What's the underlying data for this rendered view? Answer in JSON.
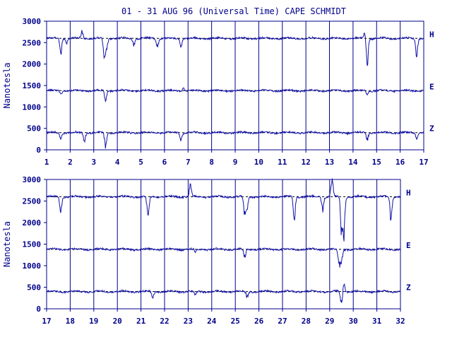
{
  "title": "01 - 31 AUG 96 (Universal Time) CAPE SCHMIDT",
  "colors": {
    "axis": "#00008b",
    "trace": "#1010a8",
    "baseline": "#000000",
    "background": "#ffffff"
  },
  "chart_data": [
    {
      "type": "line",
      "title": "01 - 31 AUG 96 (Universal Time) CAPE SCHMIDT",
      "xlabel": "",
      "ylabel": "Nanotesla",
      "xlim": [
        1,
        17
      ],
      "ylim": [
        0,
        3000
      ],
      "x_ticks": [
        "1",
        "2",
        "3",
        "4",
        "5",
        "6",
        "7",
        "8",
        "9",
        "10",
        "11",
        "12",
        "13",
        "14",
        "15",
        "16",
        "17"
      ],
      "y_ticks": [
        "0",
        "500",
        "1000",
        "1500",
        "2000",
        "2500",
        "3000"
      ],
      "grid": "vertical at each day",
      "series": [
        {
          "name": "H",
          "baseline": 2600,
          "disturbances": [
            [
              1.6,
              2250
            ],
            [
              1.85,
              2500
            ],
            [
              2.5,
              2750
            ],
            [
              3.45,
              2150
            ],
            [
              3.55,
              2400
            ],
            [
              4.7,
              2450
            ],
            [
              5.7,
              2400
            ],
            [
              6.7,
              2400
            ],
            [
              14.5,
              2750
            ],
            [
              14.6,
              2000
            ],
            [
              16.7,
              2200
            ]
          ]
        },
        {
          "name": "E",
          "baseline": 1380,
          "disturbances": [
            [
              1.6,
              1300
            ],
            [
              3.5,
              1150
            ],
            [
              6.8,
              1450
            ],
            [
              14.6,
              1300
            ]
          ]
        },
        {
          "name": "Z",
          "baseline": 400,
          "disturbances": [
            [
              1.6,
              250
            ],
            [
              2.6,
              200
            ],
            [
              3.5,
              100
            ],
            [
              6.7,
              250
            ],
            [
              14.6,
              250
            ],
            [
              16.7,
              270
            ]
          ]
        }
      ]
    },
    {
      "type": "line",
      "title": "",
      "xlabel": "",
      "ylabel": "Nanotesla",
      "xlim": [
        17,
        32
      ],
      "ylim": [
        0,
        3000
      ],
      "x_ticks": [
        "17",
        "18",
        "19",
        "20",
        "21",
        "22",
        "23",
        "24",
        "25",
        "26",
        "27",
        "28",
        "29",
        "30",
        "31",
        "32"
      ],
      "y_ticks": [
        "0",
        "500",
        "1000",
        "1500",
        "2000",
        "2500",
        "3000"
      ],
      "grid": "vertical at each day",
      "series": [
        {
          "name": "H",
          "baseline": 2600,
          "disturbances": [
            [
              17.6,
              2250
            ],
            [
              21.3,
              2100
            ],
            [
              23.1,
              2900
            ],
            [
              25.4,
              2150
            ],
            [
              25.5,
              2350
            ],
            [
              27.5,
              2100
            ],
            [
              28.7,
              2300
            ],
            [
              29.1,
              3050
            ],
            [
              29.5,
              1850
            ],
            [
              29.6,
              1750
            ],
            [
              31.6,
              2050
            ]
          ]
        },
        {
          "name": "E",
          "baseline": 1380,
          "disturbances": [
            [
              23.3,
              1300
            ],
            [
              25.4,
              1150
            ],
            [
              29.4,
              1000
            ],
            [
              29.5,
              1100
            ]
          ]
        },
        {
          "name": "Z",
          "baseline": 400,
          "disturbances": [
            [
              21.5,
              250
            ],
            [
              23.3,
              300
            ],
            [
              25.5,
              250
            ],
            [
              29.5,
              100
            ],
            [
              29.6,
              600
            ]
          ]
        }
      ]
    }
  ]
}
